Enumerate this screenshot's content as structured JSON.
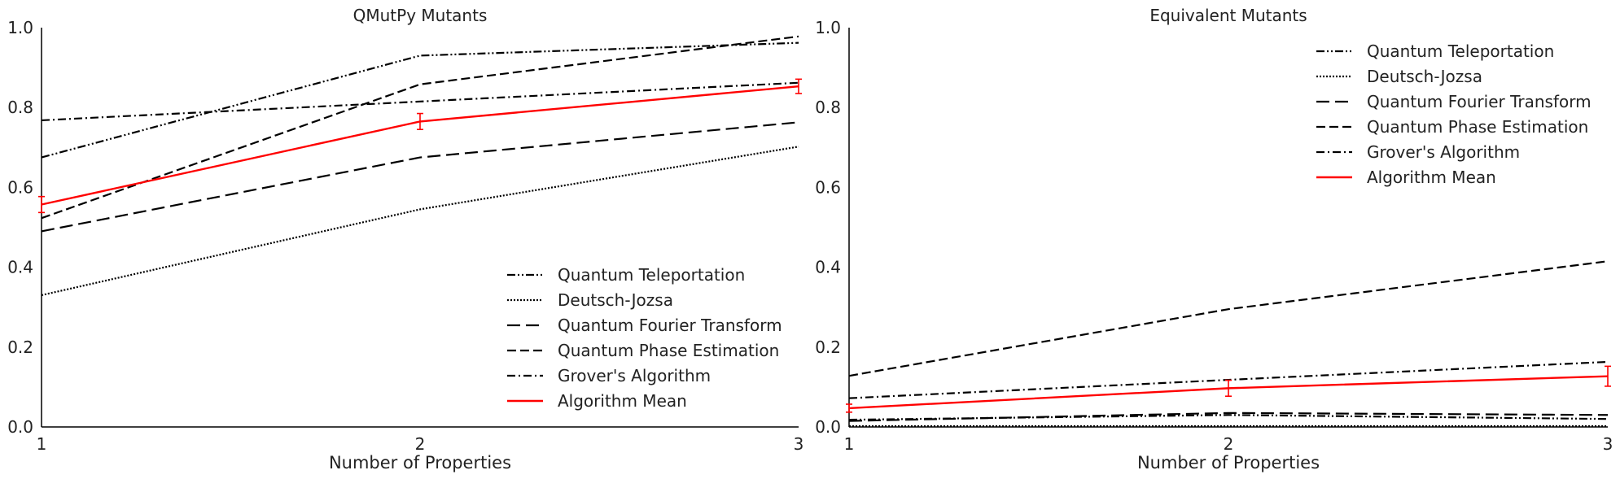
{
  "chart_data": [
    {
      "type": "line",
      "title": "QMutPy Mutants",
      "xlabel": "Number of Properties",
      "ylabel": "",
      "x": [
        1,
        2,
        3
      ],
      "xlim": [
        1,
        3
      ],
      "ylim": [
        0.0,
        1.0
      ],
      "xticks": [
        "1",
        "2",
        "3"
      ],
      "yticks": [
        "0.0",
        "0.2",
        "0.4",
        "0.6",
        "0.8",
        "1.0"
      ],
      "grid": false,
      "legend_position": "lower-right",
      "series": [
        {
          "name": "Quantum Teleportation",
          "values": [
            0.675,
            0.93,
            0.962
          ],
          "color": "#000000",
          "style": "dashdotdot"
        },
        {
          "name": "Deutsch-Jozsa",
          "values": [
            0.33,
            0.545,
            0.702
          ],
          "color": "#000000",
          "style": "dotted"
        },
        {
          "name": "Quantum Fourier Transform",
          "values": [
            0.49,
            0.675,
            0.763
          ],
          "color": "#000000",
          "style": "longdash"
        },
        {
          "name": "Quantum Phase Estimation",
          "values": [
            0.523,
            0.858,
            0.978
          ],
          "color": "#000000",
          "style": "dashed"
        },
        {
          "name": "Grover's Algorithm",
          "values": [
            0.768,
            0.815,
            0.862
          ],
          "color": "#000000",
          "style": "dashdot"
        },
        {
          "name": "Algorithm Mean",
          "values": [
            0.557,
            0.765,
            0.853
          ],
          "errors": [
            0.02,
            0.02,
            0.018
          ],
          "color": "#ff0000",
          "style": "solid"
        }
      ]
    },
    {
      "type": "line",
      "title": "Equivalent Mutants",
      "xlabel": "Number of Properties",
      "ylabel": "",
      "x": [
        1,
        2,
        3
      ],
      "xlim": [
        1,
        3
      ],
      "ylim": [
        0.0,
        1.0
      ],
      "xticks": [
        "1",
        "2",
        "3"
      ],
      "yticks": [
        "0.0",
        "0.2",
        "0.4",
        "0.6",
        "0.8",
        "1.0"
      ],
      "grid": false,
      "legend_position": "upper-right",
      "series": [
        {
          "name": "Quantum Teleportation",
          "values": [
            0.018,
            0.03,
            0.02
          ],
          "color": "#000000",
          "style": "dashdotdot"
        },
        {
          "name": "Deutsch-Jozsa",
          "values": [
            0.002,
            0.002,
            0.002
          ],
          "color": "#000000",
          "style": "dotted"
        },
        {
          "name": "Quantum Fourier Transform",
          "values": [
            0.015,
            0.035,
            0.03
          ],
          "color": "#000000",
          "style": "longdash"
        },
        {
          "name": "Quantum Phase Estimation",
          "values": [
            0.128,
            0.295,
            0.415
          ],
          "color": "#000000",
          "style": "dashed"
        },
        {
          "name": "Grover's Algorithm",
          "values": [
            0.072,
            0.118,
            0.163
          ],
          "color": "#000000",
          "style": "dashdot"
        },
        {
          "name": "Algorithm Mean",
          "values": [
            0.047,
            0.097,
            0.127
          ],
          "errors": [
            0.01,
            0.02,
            0.025
          ],
          "color": "#ff0000",
          "style": "solid"
        }
      ]
    }
  ]
}
